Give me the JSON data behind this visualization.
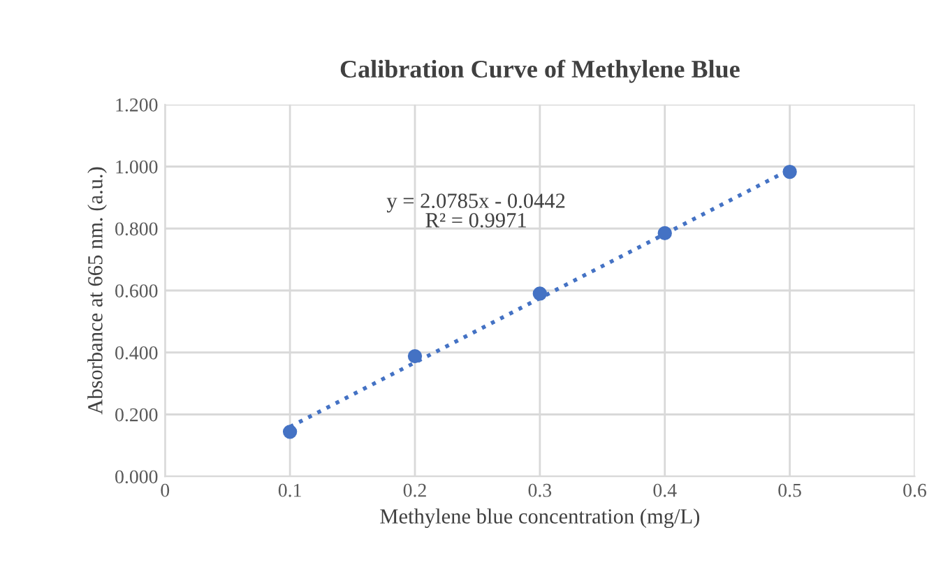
{
  "chart_data": {
    "type": "scatter",
    "title": "Calibration Curve of Methylene Blue",
    "xlabel": "Methylene blue concentration (mg/L)",
    "ylabel": "Absorbance at 665 nm. (a.u.)",
    "series": [
      {
        "color": "#4472c4",
        "x": [
          0.1,
          0.2,
          0.3,
          0.4,
          0.5
        ],
        "values": [
          0.144,
          0.388,
          0.59,
          0.785,
          0.983
        ],
        "marker": "circle"
      },
      {
        "type": "line",
        "color": "#4472c4",
        "x": [
          0.1,
          0.5
        ],
        "values": [
          0.16,
          0.99
        ],
        "line_style": "dotted",
        "marker": "none"
      }
    ],
    "annotations": [
      "y = 2.0785x - 0.0442\nR² = 0.9971"
    ],
    "xlim": [
      0,
      0.6
    ],
    "xticks": [
      0,
      0.1,
      0.2,
      0.3,
      0.4,
      0.5,
      0.6
    ],
    "ylim": [
      0,
      1.2
    ],
    "yticks": [
      {
        "value": 0,
        "label": "0.000"
      },
      {
        "value": 0.2,
        "label": "0.200"
      },
      {
        "value": 0.4,
        "label": "0.400"
      },
      {
        "value": 0.6,
        "label": "0.600"
      },
      {
        "value": 0.8,
        "label": "0.800"
      },
      {
        "value": 1.0,
        "label": "1.000"
      },
      {
        "value": 1.2,
        "label": "1.200"
      }
    ],
    "grid": true
  }
}
